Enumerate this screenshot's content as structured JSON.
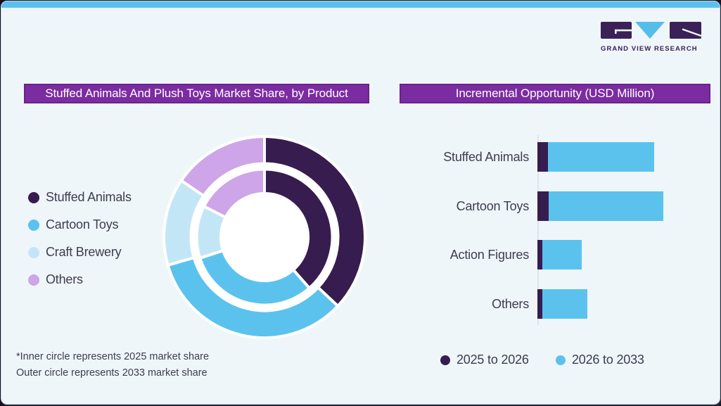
{
  "logo": {
    "brand_text": "GRAND VIEW RESEARCH"
  },
  "left_panel": {
    "title": "Stuffed Animals And Plush Toys Market Share, by Product",
    "legend": [
      {
        "label": "Stuffed Animals",
        "color": "#371C50"
      },
      {
        "label": "Cartoon Toys",
        "color": "#5BC2EE"
      },
      {
        "label": "Craft Brewery",
        "color": "#C3E6F7"
      },
      {
        "label": "Others",
        "color": "#CDA5E8"
      }
    ],
    "footnotes": [
      "*Inner circle represents 2025 market share",
      "Outer circle represents 2033 market share"
    ]
  },
  "right_panel": {
    "title": "Incremental Opportunity (USD Million)",
    "legend": [
      {
        "label": "2025 to 2026",
        "color": "#371C50"
      },
      {
        "label": "2026 to 2033",
        "color": "#5BC2EE"
      }
    ]
  },
  "chart_data": [
    {
      "type": "donut",
      "title": "Stuffed Animals And Plush Toys Market Share, by Product",
      "categories": [
        "Stuffed Animals",
        "Cartoon Toys",
        "Craft Brewery",
        "Others"
      ],
      "colors": [
        "#371C50",
        "#5BC2EE",
        "#C3E6F7",
        "#CDA5E8"
      ],
      "rings": [
        {
          "name": "inner",
          "represents": "2025 market share",
          "values_pct": [
            38.5,
            31.5,
            12.5,
            17.5
          ]
        },
        {
          "name": "outer",
          "represents": "2033 market share",
          "values_pct": [
            37.0,
            33.5,
            14.0,
            15.5
          ]
        }
      ],
      "start_angle": "12 o'clock, clockwise",
      "legend_position": "left",
      "hole_color": "#FFFFFF"
    },
    {
      "type": "bar",
      "orientation": "horizontal",
      "stacked": true,
      "title": "Incremental Opportunity (USD Million)",
      "categories": [
        "Stuffed Animals",
        "Cartoon Toys",
        "Action Figures",
        "Others"
      ],
      "series": [
        {
          "name": "2025 to 2026",
          "color": "#371C50",
          "values": [
            15,
            16,
            7,
            7
          ]
        },
        {
          "name": "2026 to 2033",
          "color": "#5BC2EE",
          "values": [
            151,
            163,
            56,
            64
          ]
        }
      ],
      "value_axis": {
        "tick_labels_shown": false,
        "unit": "USD Million",
        "note": "values estimated as relative bar lengths; no tick labels in image"
      },
      "legend_position": "bottom"
    }
  ],
  "theme": {
    "top_strip": "#58C2EE",
    "card_bg": "#EFF6FA",
    "card_border": "#C9D6E0",
    "banner_bg": "#7B2CA0",
    "banner_border": "#69218F",
    "banner_text": "#FFFFFF",
    "body_text": "#3D3C4E",
    "logo_purple": "#3A2157",
    "logo_blue": "#56BDEA"
  }
}
